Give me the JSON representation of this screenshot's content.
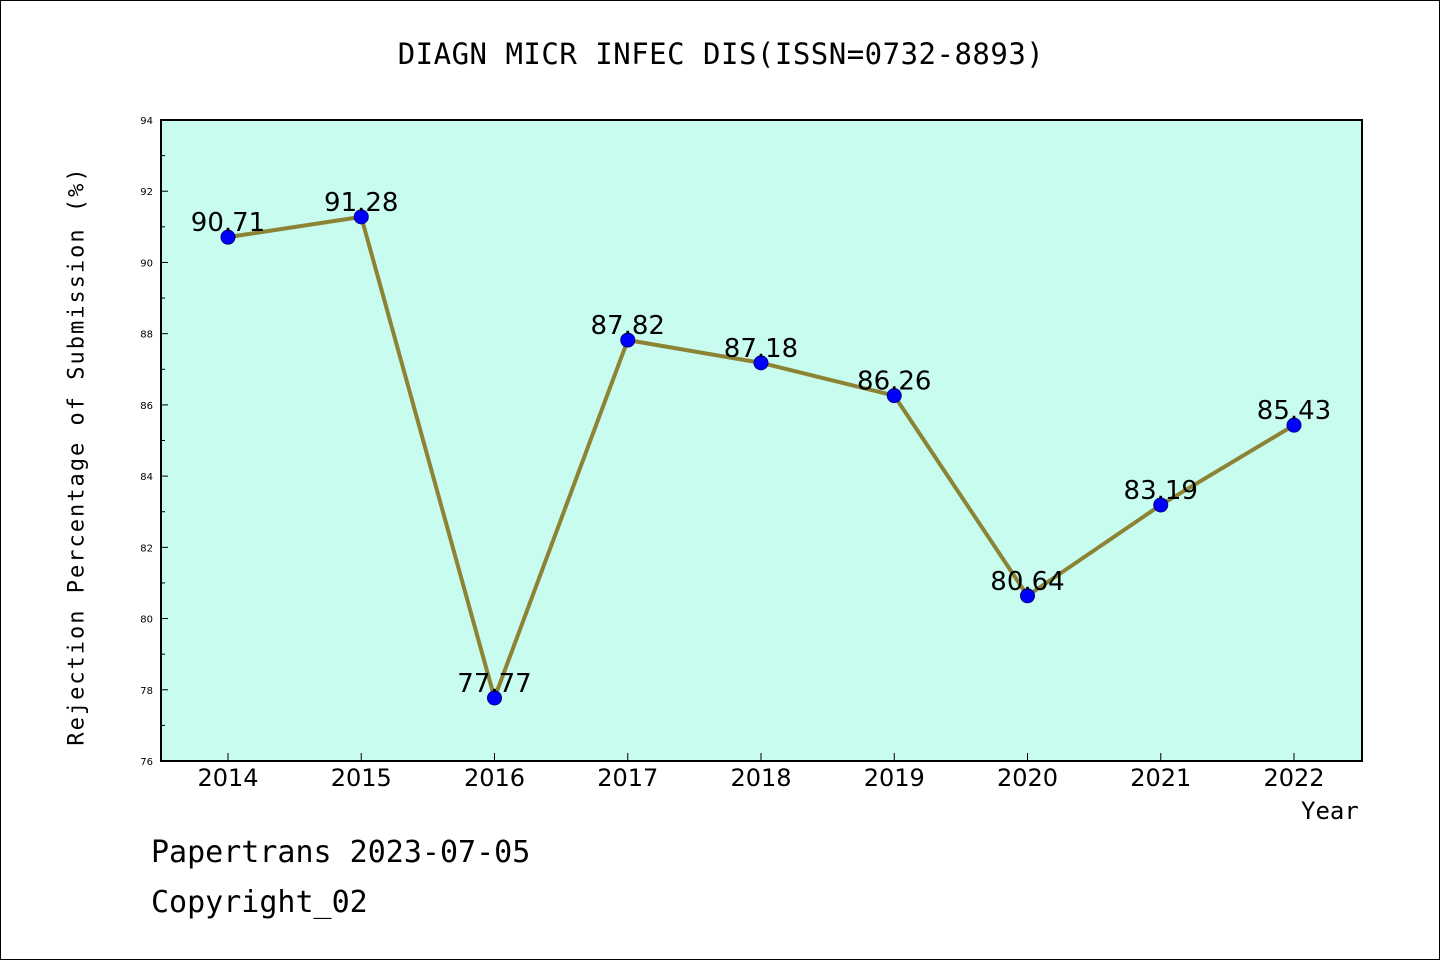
{
  "title": "DIAGN MICR INFEC DIS(ISSN=0732-8893)",
  "footer": {
    "line1": "Papertrans 2023-07-05",
    "line2": "Copyright_02"
  },
  "colors": {
    "plot_background": "#c8fcee",
    "line": "#8c8434",
    "marker": "#0000ff",
    "axes": "#000000"
  },
  "chart_data": {
    "type": "line",
    "title": "DIAGN MICR INFEC DIS(ISSN=0732-8893)",
    "xlabel": "Year",
    "ylabel": "Rejection Percentage of Submission (%)",
    "categories": [
      "2014",
      "2015",
      "2016",
      "2017",
      "2018",
      "2019",
      "2020",
      "2021",
      "2022"
    ],
    "values": [
      90.71,
      91.28,
      77.77,
      87.82,
      87.18,
      86.26,
      80.64,
      83.19,
      85.43
    ],
    "data_labels": [
      "90.71",
      "91.28",
      "77.77",
      "87.82",
      "87.18",
      "86.26",
      "80.64",
      "83.19",
      "85.43"
    ],
    "ylim": [
      76,
      94
    ],
    "yticks": [
      76,
      78,
      80,
      82,
      84,
      86,
      88,
      90,
      92,
      94
    ],
    "grid": false,
    "legend": "none"
  }
}
